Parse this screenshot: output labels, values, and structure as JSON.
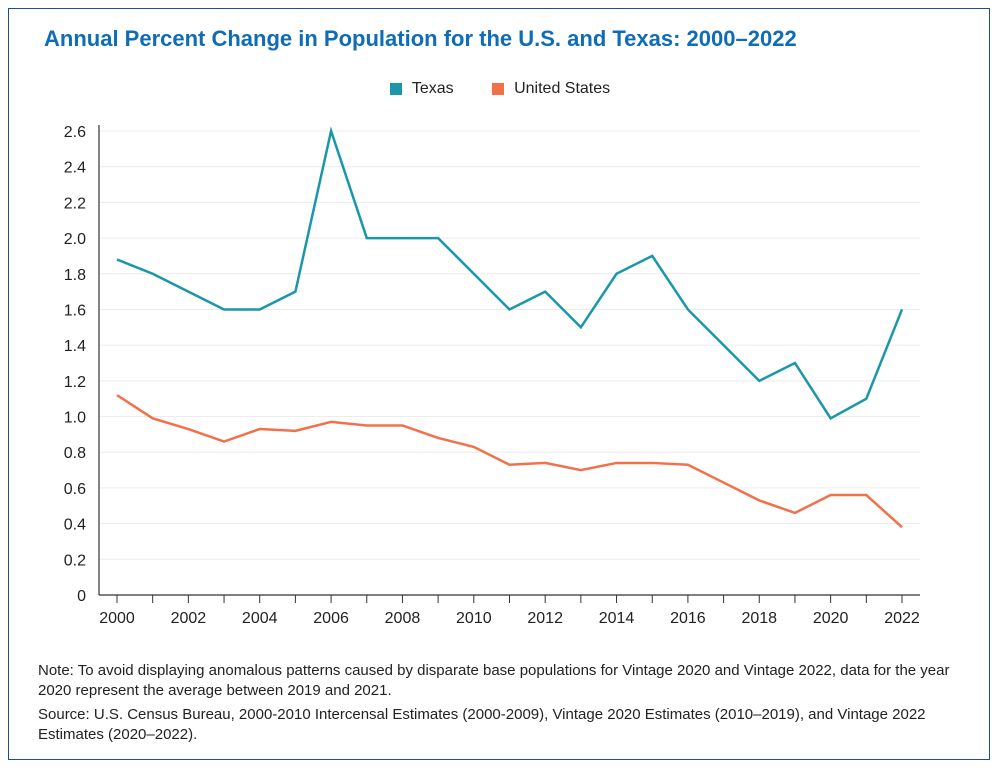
{
  "title": "Annual Percent Change in Population for the U.S. and Texas: 2000–2022",
  "note": "Note: To avoid displaying anomalous patterns caused by disparate base populations for Vintage 2020 and Vintage 2022, data for the year 2020 represent the average between 2019 and 2021.",
  "source": "Source: U.S. Census Bureau, 2000-2010 Intercensal Estimates (2000-2009), Vintage 2020 Estimates (2010–2019), and Vintage 2022 Estimates (2020–2022).",
  "chart_data": {
    "type": "line",
    "title": "Annual Percent Change in Population for the U.S. and Texas: 2000–2022",
    "x": [
      2000,
      2001,
      2002,
      2003,
      2004,
      2005,
      2006,
      2007,
      2008,
      2009,
      2010,
      2011,
      2012,
      2013,
      2014,
      2015,
      2016,
      2017,
      2018,
      2019,
      2020,
      2021,
      2022
    ],
    "xticks": [
      "2000",
      "2002",
      "2004",
      "2006",
      "2008",
      "2010",
      "2012",
      "2014",
      "2016",
      "2018",
      "2020",
      "2022"
    ],
    "yticks": [
      "0",
      "0.2",
      "0.4",
      "0.6",
      "0.8",
      "1.0",
      "1.2",
      "1.4",
      "1.6",
      "1.8",
      "2.0",
      "2.2",
      "2.4",
      "2.6"
    ],
    "ylim": [
      0,
      2.6
    ],
    "grid": true,
    "legend": "top-center",
    "series": [
      {
        "name": "Texas",
        "color": "#1a97a9",
        "values": [
          1.88,
          1.8,
          1.7,
          1.6,
          1.6,
          1.7,
          2.6,
          2.0,
          2.0,
          2.0,
          1.8,
          1.6,
          1.7,
          1.5,
          1.8,
          1.9,
          1.6,
          1.4,
          1.2,
          1.3,
          0.99,
          1.1,
          1.6
        ]
      },
      {
        "name": "United States",
        "color": "#f2704a",
        "values": [
          1.12,
          0.99,
          0.93,
          0.86,
          0.93,
          0.92,
          0.97,
          0.95,
          0.95,
          0.88,
          0.83,
          0.73,
          0.74,
          0.7,
          0.74,
          0.74,
          0.73,
          0.63,
          0.53,
          0.46,
          0.56,
          0.56,
          0.38
        ]
      }
    ]
  }
}
